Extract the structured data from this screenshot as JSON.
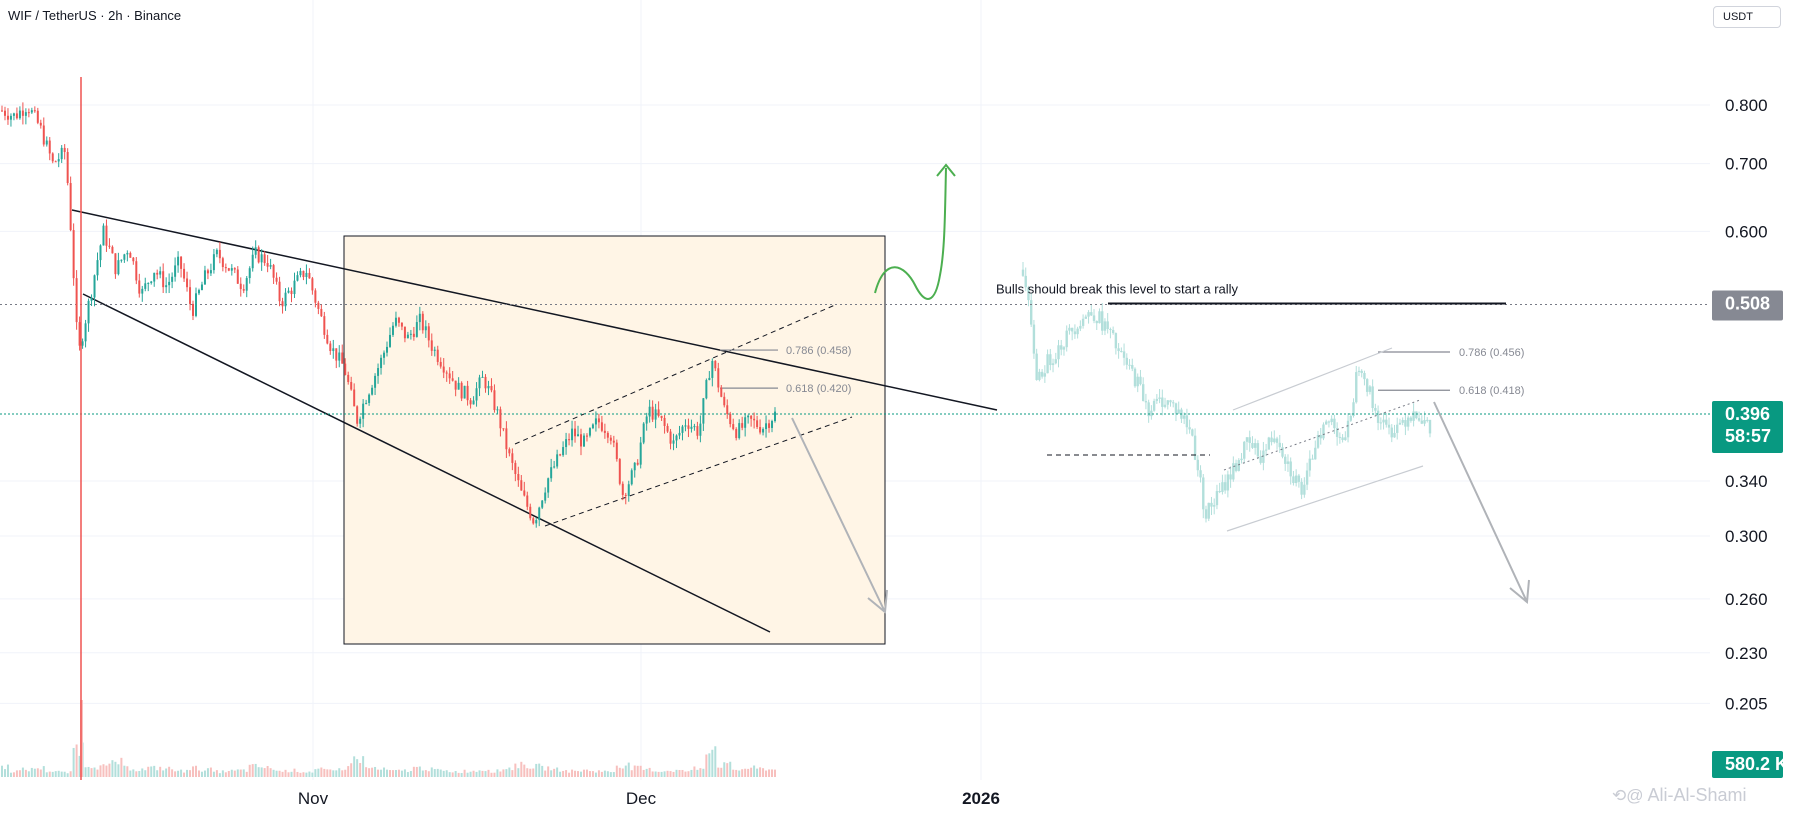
{
  "header": {
    "symbol_title": "WIF / TetherUS · 2h · Binance",
    "currency_button": "USDT"
  },
  "watermark": {
    "text": "Ali-Al-Shami",
    "icon": "tradingview-icon"
  },
  "colors": {
    "up": "#26a69a",
    "down": "#ef5350",
    "ghost": "#b2dfdb",
    "current_price": "#089981",
    "level_badge": "#868993",
    "box_fill": "#fff5e6",
    "bull_arrow": "#4caf50",
    "bear_arrow": "#b0b3b8"
  },
  "chart_data": {
    "type": "candlestick",
    "title": "WIF / TetherUS · 2h · Binance",
    "ylabel": "USDT",
    "y_scale": "log",
    "ylim": [
      0.172,
      0.95
    ],
    "y_ticks": [
      "0.800",
      "0.700",
      "0.600",
      "0.340",
      "0.300",
      "0.260",
      "0.230",
      "0.205"
    ],
    "x_ticks": [
      "Nov",
      "Dec",
      "2026"
    ],
    "grid": true,
    "current_price": "0.396",
    "countdown": "58:57",
    "volume_label": "580.2 K",
    "key_level": {
      "value": 0.508,
      "label": "0.508",
      "annotation": "Bulls should break this level to start a rally"
    },
    "price_path": [
      [
        0.79,
        0.78,
        0.8,
        0.76,
        0.7,
        0.72,
        0.45,
        0.52,
        0.6,
        0.55,
        0.58,
        0.52,
        0.55,
        0.53,
        0.56,
        0.5,
        0.54,
        0.57,
        0.55,
        0.53,
        0.57,
        0.56,
        0.51,
        0.53,
        0.55,
        0.5,
        0.46,
        0.44,
        0.39,
        0.42,
        0.45,
        0.49,
        0.47,
        0.49,
        0.46,
        0.44,
        0.42,
        0.41,
        0.43,
        0.4,
        0.36,
        0.33,
        0.31,
        0.34,
        0.36,
        0.38,
        0.37,
        0.39,
        0.38,
        0.33,
        0.35,
        0.4,
        0.39,
        0.37,
        0.39,
        0.38,
        0.45,
        0.4,
        0.38,
        0.39,
        0.384,
        0.396
      ]
    ],
    "projection_path": [
      0.55,
      0.43,
      0.45,
      0.47,
      0.49,
      0.5,
      0.48,
      0.45,
      0.43,
      0.4,
      0.41,
      0.4,
      0.38,
      0.315,
      0.33,
      0.35,
      0.37,
      0.36,
      0.38,
      0.35,
      0.33,
      0.38,
      0.39,
      0.37,
      0.45,
      0.4,
      0.38,
      0.39,
      0.4,
      0.38
    ],
    "fibonacci": [
      {
        "level": "0.786",
        "price": 0.458,
        "label": "0.786 (0.458)"
      },
      {
        "level": "0.618",
        "price": 0.42,
        "label": "0.618 (0.420)"
      }
    ],
    "projection_fibonacci": [
      {
        "level": "0.786",
        "price": 0.456,
        "label": "0.786 (0.456)"
      },
      {
        "level": "0.618",
        "price": 0.418,
        "label": "0.618 (0.418)"
      }
    ],
    "volume": [
      0.35,
      0.2,
      0.25,
      0.3,
      0.2,
      0.15,
      1.0,
      0.4,
      0.35,
      0.5,
      0.3,
      0.25,
      0.3,
      0.28,
      0.2,
      0.3,
      0.25,
      0.18,
      0.2,
      0.22,
      0.35,
      0.3,
      0.2,
      0.22,
      0.18,
      0.25,
      0.2,
      0.3,
      0.6,
      0.3,
      0.25,
      0.2,
      0.22,
      0.3,
      0.25,
      0.2,
      0.18,
      0.2,
      0.25,
      0.2,
      0.3,
      0.4,
      0.35,
      0.3,
      0.25,
      0.2,
      0.22,
      0.2,
      0.18,
      0.4,
      0.3,
      0.25,
      0.2,
      0.22,
      0.2,
      0.3,
      1.0,
      0.4,
      0.25,
      0.3,
      0.28,
      0.25
    ]
  }
}
